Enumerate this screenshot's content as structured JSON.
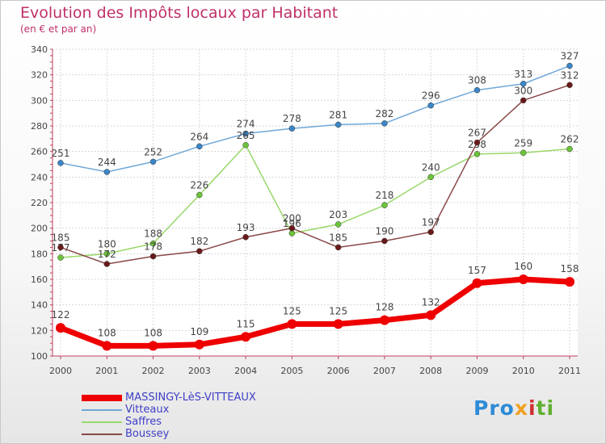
{
  "chart_data": {
    "type": "line",
    "title": "Evolution des Impôts locaux par Habitant",
    "subtitle": "(en € et par an)",
    "x": [
      "2000",
      "2001",
      "2002",
      "2003",
      "2004",
      "2005",
      "2006",
      "2007",
      "2008",
      "2009",
      "2010",
      "2011"
    ],
    "ylim": [
      100,
      340
    ],
    "yticks": [
      100,
      120,
      140,
      160,
      180,
      200,
      220,
      240,
      260,
      280,
      300,
      320,
      340
    ],
    "grid": true,
    "legend_position": "bottom-left",
    "series": [
      {
        "name": "Vitteaux",
        "color": "#6fa8d8",
        "marker": "#3a86c8",
        "width": 1.5,
        "values": [
          251,
          244,
          252,
          264,
          274,
          278,
          281,
          282,
          296,
          308,
          313,
          327
        ]
      },
      {
        "name": "Saffres",
        "color": "#9ad86a",
        "marker": "#6cc43a",
        "width": 1.5,
        "values": [
          177,
          180,
          188,
          226,
          265,
          196,
          203,
          218,
          240,
          258,
          259,
          262
        ]
      },
      {
        "name": "Boussey",
        "color": "#8a4848",
        "marker": "#6a1a1a",
        "width": 1.5,
        "values": [
          185,
          172,
          178,
          182,
          193,
          200,
          185,
          190,
          197,
          267,
          300,
          312
        ]
      },
      {
        "name": "MASSINGY-LèS-VITTEAUX",
        "color": "#ee0000",
        "marker": "#ee0000",
        "width": 7,
        "values": [
          122,
          108,
          108,
          109,
          115,
          125,
          125,
          128,
          132,
          157,
          160,
          158
        ]
      }
    ]
  },
  "logo": {
    "p1": "Pro",
    "p2": "x",
    "p3": "i",
    "p4": "ti"
  }
}
